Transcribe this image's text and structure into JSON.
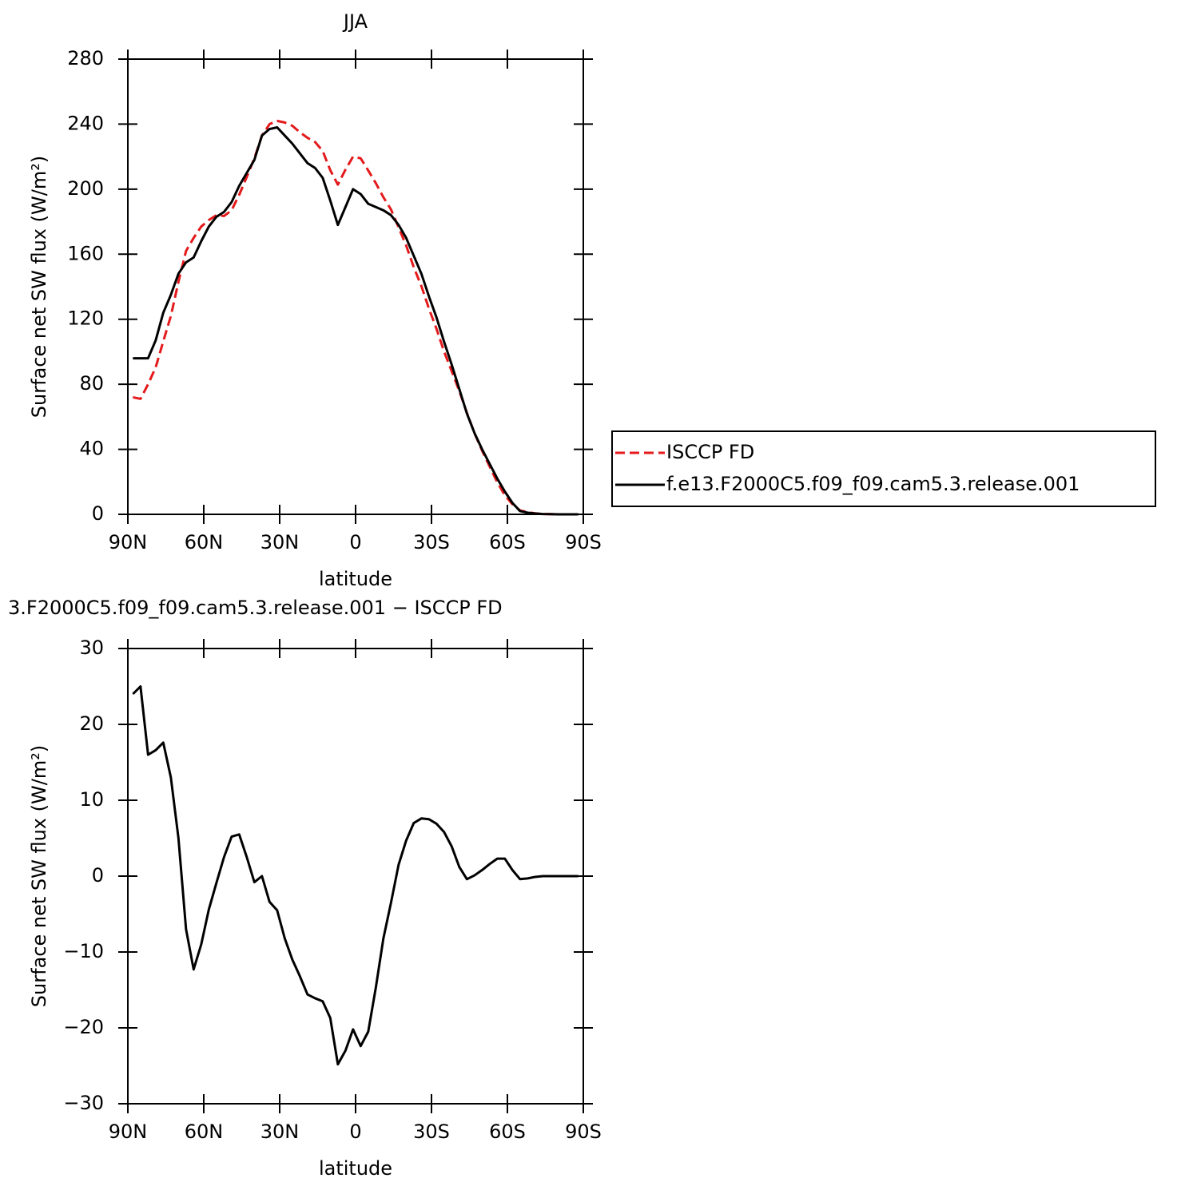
{
  "chart_data": [
    {
      "type": "line",
      "title": "JJA",
      "xlabel": "latitude",
      "ylabel": "Surface net SW flux (W/m²)",
      "x": [
        88,
        85,
        82,
        79,
        76,
        73,
        70,
        67,
        64,
        61,
        58,
        55,
        52,
        49,
        46,
        43,
        40,
        37,
        34,
        31,
        28,
        25,
        22,
        19,
        16,
        13,
        10,
        7,
        4,
        1,
        -2,
        -5,
        -8,
        -11,
        -14,
        -17,
        -20,
        -23,
        -26,
        -29,
        -32,
        -35,
        -38,
        -41,
        -44,
        -47,
        -50,
        -53,
        -56,
        -59,
        -62,
        -65,
        -68,
        -71,
        -74,
        -77,
        -80,
        -83,
        -86,
        -88
      ],
      "series": [
        {
          "name": "ISCCP FD",
          "color": "#e41a1c",
          "dashed": true,
          "values": [
            72,
            71,
            80,
            90.4,
            106.4,
            122,
            143,
            162,
            170,
            177,
            181,
            184,
            183.5,
            187,
            196.5,
            207.5,
            219,
            233,
            240,
            242,
            241,
            239,
            235,
            231.6,
            229,
            223.5,
            211.7,
            202.8,
            212,
            220,
            219,
            211.5,
            203.7,
            195,
            187.5,
            176.5,
            165.3,
            152,
            140.4,
            126.5,
            114,
            100,
            88,
            75.8,
            62.4,
            49.9,
            39.2,
            29.4,
            19.7,
            11.7,
            6.2,
            2.4,
            1.3,
            0.6,
            0.2,
            0.1,
            0,
            0,
            0,
            0
          ]
        },
        {
          "name": "f.e13.F2000C5.f09_f09.cam5.3.release.001",
          "color": "#000000",
          "dashed": false,
          "values": [
            96,
            96,
            96,
            107,
            124,
            135,
            148,
            155,
            158,
            168,
            177,
            183,
            186,
            192,
            202,
            210,
            218,
            233,
            237,
            238,
            233,
            228,
            222,
            216,
            213,
            207,
            193,
            178,
            189,
            200,
            197,
            191,
            189,
            187,
            184,
            178,
            170,
            159,
            148,
            134,
            121,
            106,
            92,
            77,
            62,
            50,
            40,
            31,
            22,
            14,
            7,
            2,
            1,
            0.5,
            0.2,
            0.1,
            0,
            0,
            0,
            0
          ]
        }
      ],
      "xlim": [
        90,
        -90
      ],
      "xticks": [
        {
          "value": 90,
          "label": "90N"
        },
        {
          "value": 60,
          "label": "60N"
        },
        {
          "value": 30,
          "label": "30N"
        },
        0,
        {
          "value": -30,
          "label": "30S"
        },
        {
          "value": -60,
          "label": "60S"
        },
        {
          "value": -90,
          "label": "90S"
        }
      ],
      "ylim": [
        0,
        280
      ],
      "yticks": [
        0,
        40,
        80,
        120,
        160,
        200,
        240,
        280
      ],
      "legend": "right"
    },
    {
      "type": "line",
      "title": "3.F2000C5.f09_f09.cam5.3.release.001 − ISCCP FD",
      "xlabel": "latitude",
      "ylabel": "Surface net SW flux (W/m²)",
      "x": [
        88,
        85,
        82,
        79,
        76,
        73,
        70,
        67,
        64,
        61,
        58,
        55,
        52,
        49,
        46,
        43,
        40,
        37,
        34,
        31,
        28,
        25,
        22,
        19,
        16,
        13,
        10,
        7,
        4,
        1,
        -2,
        -5,
        -8,
        -11,
        -14,
        -17,
        -20,
        -23,
        -26,
        -29,
        -32,
        -35,
        -38,
        -41,
        -44,
        -47,
        -50,
        -53,
        -56,
        -59,
        -62,
        -65,
        -68,
        -71,
        -74,
        -77,
        -80,
        -83,
        -86,
        -88
      ],
      "series": [
        {
          "color": "#000000",
          "dashed": false,
          "values": [
            24,
            25,
            16,
            16.6,
            17.6,
            13,
            5,
            -7,
            -12.3,
            -9,
            -4.4,
            -0.9,
            2.5,
            5.2,
            5.5,
            2.5,
            -0.8,
            0,
            -3.4,
            -4.5,
            -8.2,
            -11,
            -13.2,
            -15.6,
            -16.1,
            -16.5,
            -18.7,
            -24.8,
            -23,
            -20.2,
            -22.4,
            -20.5,
            -14.7,
            -8.2,
            -3.5,
            1.5,
            4.7,
            7,
            7.6,
            7.5,
            6.9,
            5.8,
            3.9,
            1.2,
            -0.4,
            0.1,
            0.8,
            1.6,
            2.3,
            2.3,
            0.8,
            -0.4,
            -0.3,
            -0.1,
            0,
            0,
            0,
            0,
            0,
            0
          ]
        }
      ],
      "xlim": [
        90,
        -90
      ],
      "xticks": [
        {
          "value": 90,
          "label": "90N"
        },
        {
          "value": 60,
          "label": "60N"
        },
        {
          "value": 30,
          "label": "30N"
        },
        0,
        {
          "value": -30,
          "label": "30S"
        },
        {
          "value": -60,
          "label": "60S"
        },
        {
          "value": -90,
          "label": "90S"
        }
      ],
      "ylim": [
        -30,
        30
      ],
      "yticks": [
        {
          "value": -30,
          "label": "−30"
        },
        {
          "value": -20,
          "label": "−20"
        },
        {
          "value": -10,
          "label": "−10"
        },
        0,
        10,
        20,
        30
      ]
    }
  ]
}
